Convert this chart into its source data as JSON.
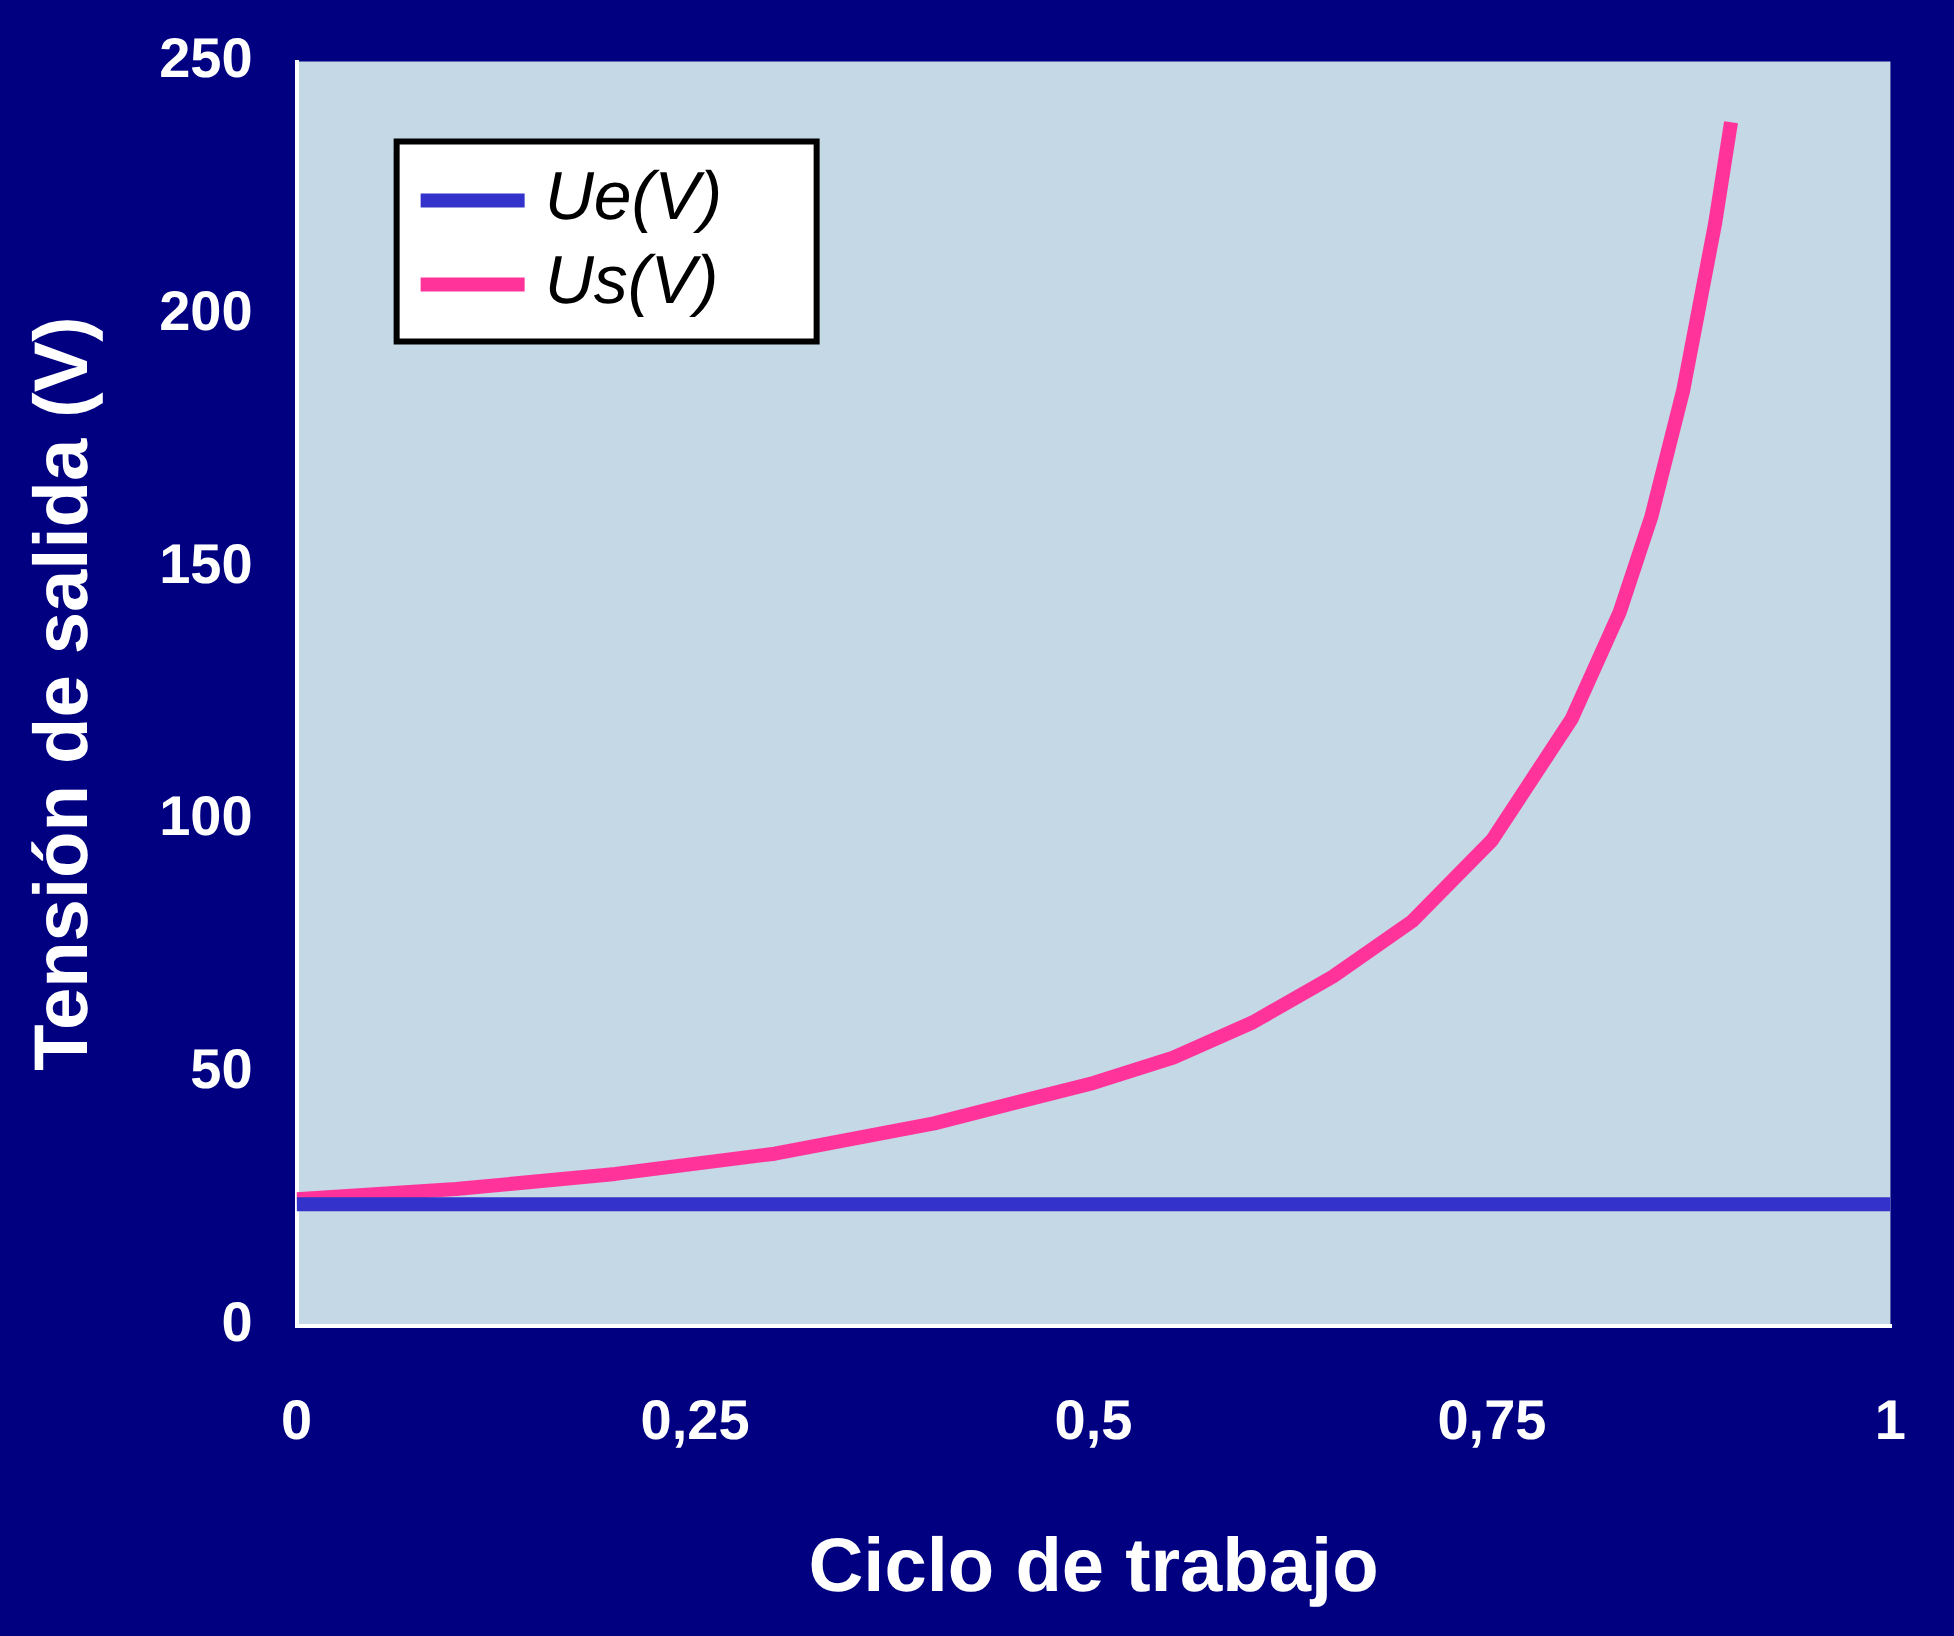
{
  "chart_data": {
    "type": "line",
    "xlabel": "Ciclo de trabajo",
    "ylabel": "Tensión de salida (V)",
    "xlim": [
      0,
      1
    ],
    "xticks": [
      0,
      {
        "value": 0.25,
        "label": "0,25"
      },
      {
        "value": 0.5,
        "label": "0,5"
      },
      {
        "value": 0.75,
        "label": "0,75"
      },
      1
    ],
    "ylim": [
      0,
      250
    ],
    "yticks": [
      0,
      50,
      100,
      150,
      200,
      250
    ],
    "series": [
      {
        "name": "Ue(V)",
        "color": "#3333cc",
        "x": [
          0,
          1
        ],
        "values": [
          24,
          24
        ]
      },
      {
        "name": "Us(V)",
        "color": "#ff3399",
        "x": [
          0,
          0.1,
          0.2,
          0.3,
          0.4,
          0.5,
          0.55,
          0.6,
          0.65,
          0.7,
          0.75,
          0.8,
          0.83,
          0.85,
          0.87,
          0.89,
          0.9
        ],
        "values": [
          25,
          27,
          30,
          34,
          40,
          48,
          53,
          60,
          69,
          80,
          96,
          120,
          141,
          160,
          185,
          218,
          238
        ]
      }
    ],
    "grid": false,
    "legend": "top left",
    "marker": "none",
    "line_style": "solid"
  }
}
